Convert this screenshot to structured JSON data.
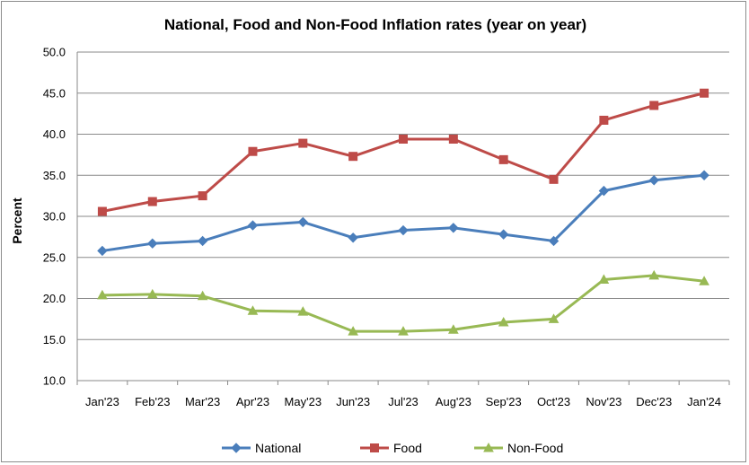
{
  "chart_data": {
    "type": "line",
    "title": "National, Food and Non-Food Inflation rates (year on year)",
    "xlabel": "",
    "ylabel": "Percent",
    "ylim": [
      10.0,
      50.0
    ],
    "y_ticks": [
      "10.0",
      "15.0",
      "20.0",
      "25.0",
      "30.0",
      "35.0",
      "40.0",
      "45.0",
      "50.0"
    ],
    "grid": true,
    "legend_position": "bottom",
    "categories": [
      "Jan'23",
      "Feb'23",
      "Mar'23",
      "Apr'23",
      "May'23",
      "Jun'23",
      "Jul'23",
      "Aug'23",
      "Sep'23",
      "Oct'23",
      "Nov'23",
      "Dec'23",
      "Jan'24"
    ],
    "series": [
      {
        "name": "National",
        "marker": "diamond",
        "color": "#4a7ebb",
        "values": [
          25.8,
          26.7,
          27.0,
          28.9,
          29.3,
          27.4,
          28.3,
          28.6,
          27.8,
          27.0,
          33.1,
          34.4,
          35.0
        ]
      },
      {
        "name": "Food",
        "marker": "square",
        "color": "#be4b48",
        "values": [
          30.6,
          31.8,
          32.5,
          37.9,
          38.9,
          37.3,
          39.4,
          39.4,
          36.9,
          34.5,
          41.7,
          43.5,
          45.0
        ]
      },
      {
        "name": "Non-Food",
        "marker": "triangle",
        "color": "#98b954",
        "values": [
          20.4,
          20.5,
          20.3,
          18.5,
          18.4,
          16.0,
          16.0,
          16.2,
          17.1,
          17.5,
          22.3,
          22.8,
          22.1
        ]
      }
    ]
  }
}
